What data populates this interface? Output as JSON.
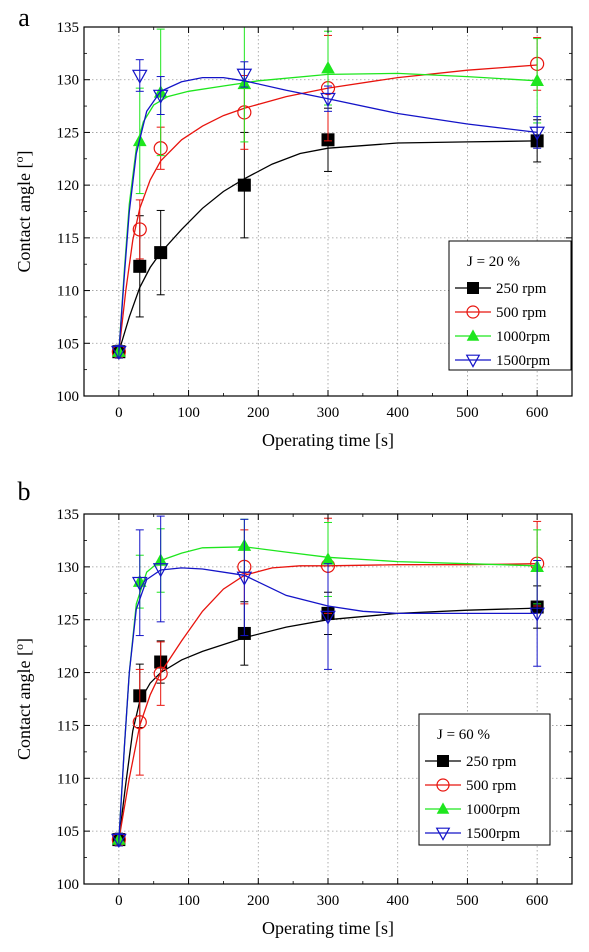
{
  "chart_data": [
    {
      "panel_label": "a",
      "type": "line",
      "xlabel": "Operating time [s]",
      "ylabel": "Contact angle [o]",
      "xlim": [
        -50,
        650
      ],
      "ylim": [
        100,
        135
      ],
      "xticks": [
        0,
        100,
        200,
        300,
        400,
        500,
        600
      ],
      "yticks": [
        100,
        105,
        110,
        115,
        120,
        125,
        130,
        135
      ],
      "grid": true,
      "legend": {
        "title": "J = 20 %",
        "placement": "right-middle"
      },
      "series": [
        {
          "name": "250 rpm",
          "color": "#000000",
          "marker": "square-filled",
          "x": [
            0,
            30,
            60,
            180,
            300,
            600
          ],
          "y": [
            104.2,
            112.3,
            113.6,
            120.0,
            124.3,
            124.2
          ],
          "err": [
            0.6,
            4.8,
            4.0,
            5.0,
            3.0,
            2.0
          ],
          "fit": [
            [
              0,
              104.2
            ],
            [
              15,
              107.5
            ],
            [
              30,
              110.3
            ],
            [
              45,
              112.2
            ],
            [
              60,
              113.6
            ],
            [
              90,
              115.8
            ],
            [
              120,
              117.8
            ],
            [
              150,
              119.4
            ],
            [
              180,
              120.6
            ],
            [
              220,
              122.0
            ],
            [
              260,
              123.0
            ],
            [
              300,
              123.5
            ],
            [
              400,
              124.0
            ],
            [
              500,
              124.1
            ],
            [
              600,
              124.2
            ]
          ]
        },
        {
          "name": "500 rpm",
          "color": "#e8140e",
          "marker": "circle-open",
          "x": [
            0,
            30,
            60,
            180,
            300,
            600
          ],
          "y": [
            104.2,
            115.8,
            123.5,
            126.9,
            129.2,
            131.5
          ],
          "err": [
            0.6,
            2.8,
            2.0,
            3.5,
            5.0,
            2.5
          ],
          "fit": [
            [
              0,
              104.2
            ],
            [
              10,
              110.0
            ],
            [
              20,
              114.8
            ],
            [
              30,
              117.8
            ],
            [
              45,
              120.5
            ],
            [
              60,
              122.3
            ],
            [
              90,
              124.3
            ],
            [
              120,
              125.6
            ],
            [
              150,
              126.6
            ],
            [
              180,
              127.3
            ],
            [
              240,
              128.4
            ],
            [
              300,
              129.2
            ],
            [
              400,
              130.2
            ],
            [
              500,
              130.9
            ],
            [
              600,
              131.4
            ]
          ]
        },
        {
          "name": "1000rpm",
          "color": "#1ee61e",
          "marker": "triangle-up-filled",
          "x": [
            0,
            30,
            60,
            180,
            300,
            600
          ],
          "y": [
            104.2,
            124.2,
            128.8,
            129.6,
            131.1,
            129.9
          ],
          "err": [
            0.6,
            5.0,
            6.0,
            5.5,
            3.5,
            4.0
          ],
          "fit": [
            [
              0,
              104.2
            ],
            [
              8,
              112.0
            ],
            [
              15,
              118.2
            ],
            [
              25,
              123.5
            ],
            [
              35,
              126.0
            ],
            [
              50,
              127.6
            ],
            [
              70,
              128.4
            ],
            [
              100,
              128.9
            ],
            [
              150,
              129.4
            ],
            [
              200,
              129.9
            ],
            [
              300,
              130.5
            ],
            [
              400,
              130.6
            ],
            [
              500,
              130.3
            ],
            [
              600,
              129.9
            ]
          ]
        },
        {
          "name": "1500rpm",
          "color": "#1414c8",
          "marker": "triangle-down-open",
          "x": [
            0,
            30,
            60,
            180,
            300,
            600
          ],
          "y": [
            104.2,
            130.4,
            128.5,
            130.5,
            128.2,
            125.0
          ],
          "err": [
            0.6,
            1.5,
            1.8,
            1.2,
            1.2,
            1.5
          ],
          "fit": [
            [
              0,
              104.2
            ],
            [
              8,
              111.5
            ],
            [
              15,
              117.5
            ],
            [
              25,
              123.0
            ],
            [
              40,
              127.0
            ],
            [
              60,
              128.9
            ],
            [
              90,
              129.8
            ],
            [
              120,
              130.2
            ],
            [
              150,
              130.2
            ],
            [
              180,
              129.9
            ],
            [
              240,
              129.0
            ],
            [
              300,
              128.2
            ],
            [
              400,
              126.8
            ],
            [
              500,
              125.8
            ],
            [
              600,
              125.0
            ]
          ]
        }
      ]
    },
    {
      "panel_label": "b",
      "type": "line",
      "xlabel": "Operating time [s]",
      "ylabel": "Contact angle [o]",
      "xlim": [
        -50,
        650
      ],
      "ylim": [
        100,
        135
      ],
      "xticks": [
        0,
        100,
        200,
        300,
        400,
        500,
        600
      ],
      "yticks": [
        100,
        105,
        110,
        115,
        120,
        125,
        130,
        135
      ],
      "grid": true,
      "legend": {
        "title": "J = 60 %",
        "placement": "right-middle"
      },
      "series": [
        {
          "name": "250 rpm",
          "color": "#000000",
          "marker": "square-filled",
          "x": [
            0,
            30,
            60,
            180,
            300,
            600
          ],
          "y": [
            104.2,
            117.8,
            121.0,
            123.7,
            125.6,
            126.2
          ],
          "err": [
            0.6,
            3.0,
            2.0,
            3.0,
            2.0,
            2.0
          ],
          "fit": [
            [
              0,
              104.2
            ],
            [
              10,
              109.5
            ],
            [
              20,
              114.5
            ],
            [
              30,
              117.3
            ],
            [
              45,
              119.0
            ],
            [
              60,
              120.0
            ],
            [
              90,
              121.2
            ],
            [
              120,
              122.0
            ],
            [
              180,
              123.3
            ],
            [
              240,
              124.3
            ],
            [
              300,
              125.0
            ],
            [
              400,
              125.6
            ],
            [
              500,
              125.9
            ],
            [
              600,
              126.1
            ]
          ]
        },
        {
          "name": "500 rpm",
          "color": "#e8140e",
          "marker": "circle-open",
          "x": [
            0,
            30,
            60,
            180,
            300,
            600
          ],
          "y": [
            104.2,
            115.3,
            119.9,
            130.0,
            130.1,
            130.3
          ],
          "err": [
            0.6,
            5.0,
            3.0,
            3.5,
            4.5,
            4.0
          ],
          "fit": [
            [
              0,
              104.2
            ],
            [
              15,
              110.0
            ],
            [
              30,
              115.0
            ],
            [
              45,
              117.9
            ],
            [
              60,
              120.0
            ],
            [
              90,
              123.0
            ],
            [
              120,
              125.8
            ],
            [
              150,
              127.9
            ],
            [
              180,
              129.2
            ],
            [
              220,
              129.9
            ],
            [
              260,
              130.1
            ],
            [
              300,
              130.1
            ],
            [
              400,
              130.2
            ],
            [
              500,
              130.2
            ],
            [
              600,
              130.3
            ]
          ]
        },
        {
          "name": "1000rpm",
          "color": "#1ee61e",
          "marker": "triangle-up-filled",
          "x": [
            0,
            30,
            60,
            180,
            300,
            600
          ],
          "y": [
            104.2,
            128.6,
            130.6,
            132.0,
            130.7,
            130.0
          ],
          "err": [
            0.6,
            2.5,
            3.0,
            2.5,
            3.5,
            3.5
          ],
          "fit": [
            [
              0,
              104.2
            ],
            [
              8,
              113.0
            ],
            [
              15,
              120.0
            ],
            [
              25,
              126.5
            ],
            [
              40,
              129.5
            ],
            [
              60,
              130.6
            ],
            [
              90,
              131.3
            ],
            [
              120,
              131.8
            ],
            [
              180,
              131.9
            ],
            [
              240,
              131.4
            ],
            [
              300,
              130.9
            ],
            [
              400,
              130.5
            ],
            [
              500,
              130.3
            ],
            [
              600,
              130.1
            ]
          ]
        },
        {
          "name": "1500rpm",
          "color": "#1414c8",
          "marker": "triangle-down-open",
          "x": [
            0,
            30,
            60,
            180,
            300,
            600
          ],
          "y": [
            104.2,
            128.5,
            129.8,
            129.0,
            125.3,
            125.6
          ],
          "err": [
            0.6,
            5.0,
            5.0,
            5.5,
            5.0,
            5.0
          ],
          "fit": [
            [
              0,
              104.2
            ],
            [
              8,
              113.0
            ],
            [
              15,
              120.0
            ],
            [
              25,
              126.0
            ],
            [
              40,
              128.8
            ],
            [
              60,
              129.7
            ],
            [
              90,
              129.9
            ],
            [
              120,
              129.8
            ],
            [
              180,
              129.2
            ],
            [
              240,
              127.3
            ],
            [
              300,
              126.3
            ],
            [
              350,
              125.8
            ],
            [
              400,
              125.6
            ],
            [
              500,
              125.6
            ],
            [
              600,
              125.6
            ]
          ]
        }
      ]
    }
  ]
}
